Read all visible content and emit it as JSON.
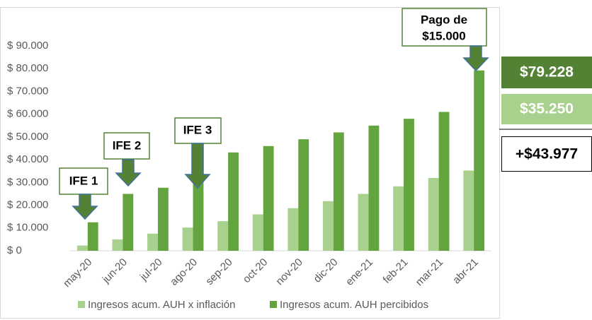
{
  "chart_data": {
    "type": "bar",
    "categories": [
      "may-20",
      "jun-20",
      "jul-20",
      "ago-20",
      "sep-20",
      "oct-20",
      "nov-20",
      "dic-20",
      "ene-21",
      "feb-21",
      "mar-21",
      "abr-21"
    ],
    "series": [
      {
        "name": "Ingresos acum. AUH x inflación",
        "color": "#a9d18e",
        "values": [
          2300,
          5000,
          7500,
          10200,
          13000,
          16000,
          18700,
          21800,
          25000,
          28300,
          32000,
          35250
        ]
      },
      {
        "name": "Ingresos acum. AUH percibidos",
        "color": "#64a43f",
        "values": [
          12500,
          25000,
          27700,
          37500,
          43200,
          46000,
          49000,
          52000,
          55000,
          58000,
          61000,
          79228
        ]
      }
    ],
    "ylim": [
      0,
      90000
    ],
    "yticks": [
      {
        "value": 0,
        "label": "$ 0"
      },
      {
        "value": 10000,
        "label": "$ 10.000"
      },
      {
        "value": 20000,
        "label": "$ 20.000"
      },
      {
        "value": 30000,
        "label": "$ 30.000"
      },
      {
        "value": 40000,
        "label": "$ 40.000"
      },
      {
        "value": 50000,
        "label": "$ 50.000"
      },
      {
        "value": 60000,
        "label": "$ 60.000"
      },
      {
        "value": 70000,
        "label": "$ 70.000"
      },
      {
        "value": 80000,
        "label": "$ 80.000"
      },
      {
        "value": 90000,
        "label": "$ 90.000"
      }
    ],
    "legend": "bottom",
    "annotations": [
      {
        "text": "IFE 1"
      },
      {
        "text": "IFE 2"
      },
      {
        "text": "IFE 3"
      },
      {
        "lines": [
          "Pago de",
          "$15.000"
        ]
      }
    ],
    "callouts": [
      "$79.228",
      "$35.250",
      "+$43.977"
    ]
  }
}
